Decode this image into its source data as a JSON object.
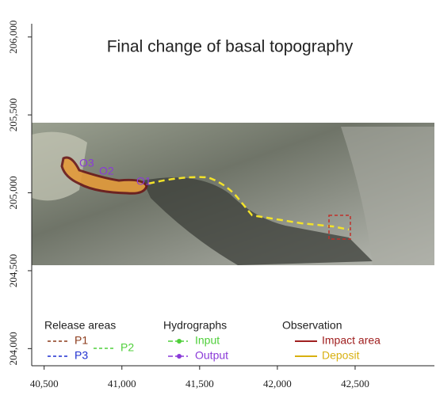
{
  "chart_data": {
    "type": "map",
    "title": "Final change of basal topography",
    "xlim": [
      40420,
      43010
    ],
    "ylim": [
      203890,
      206085
    ],
    "xticks": [
      {
        "value": 40500,
        "label": "40,500"
      },
      {
        "value": 41000,
        "label": "41,000"
      },
      {
        "value": 41500,
        "label": "41,500"
      },
      {
        "value": 42000,
        "label": "42,000"
      },
      {
        "value": 42500,
        "label": "42,500"
      }
    ],
    "yticks": [
      {
        "value": 204000,
        "label": "204,000"
      },
      {
        "value": 204500,
        "label": "204,500"
      },
      {
        "value": 205000,
        "label": "205,000"
      },
      {
        "value": 205500,
        "label": "205,500"
      },
      {
        "value": 206000,
        "label": "206,000"
      }
    ],
    "map_labels": [
      "O3",
      "O2",
      "O1"
    ],
    "legend": [
      {
        "title": "Release areas",
        "items": [
          {
            "name": "P1",
            "color": "#8b3a1a",
            "style": "dashed"
          },
          {
            "name": "P3",
            "color": "#1f2fd0",
            "style": "dashed"
          },
          {
            "name": "P2",
            "color": "#4fcf3a",
            "style": "dashed"
          }
        ]
      },
      {
        "title": "Hydrographs",
        "items": [
          {
            "name": "Input",
            "color": "#4fcf3a",
            "style": "dashdot"
          },
          {
            "name": "Output",
            "color": "#8a3ad8",
            "style": "dashdot"
          }
        ]
      },
      {
        "title": "Observation",
        "items": [
          {
            "name": "Impact area",
            "color": "#a02020",
            "style": "solid"
          },
          {
            "name": "Deposit",
            "color": "#d8b010",
            "style": "solid"
          }
        ]
      }
    ]
  }
}
